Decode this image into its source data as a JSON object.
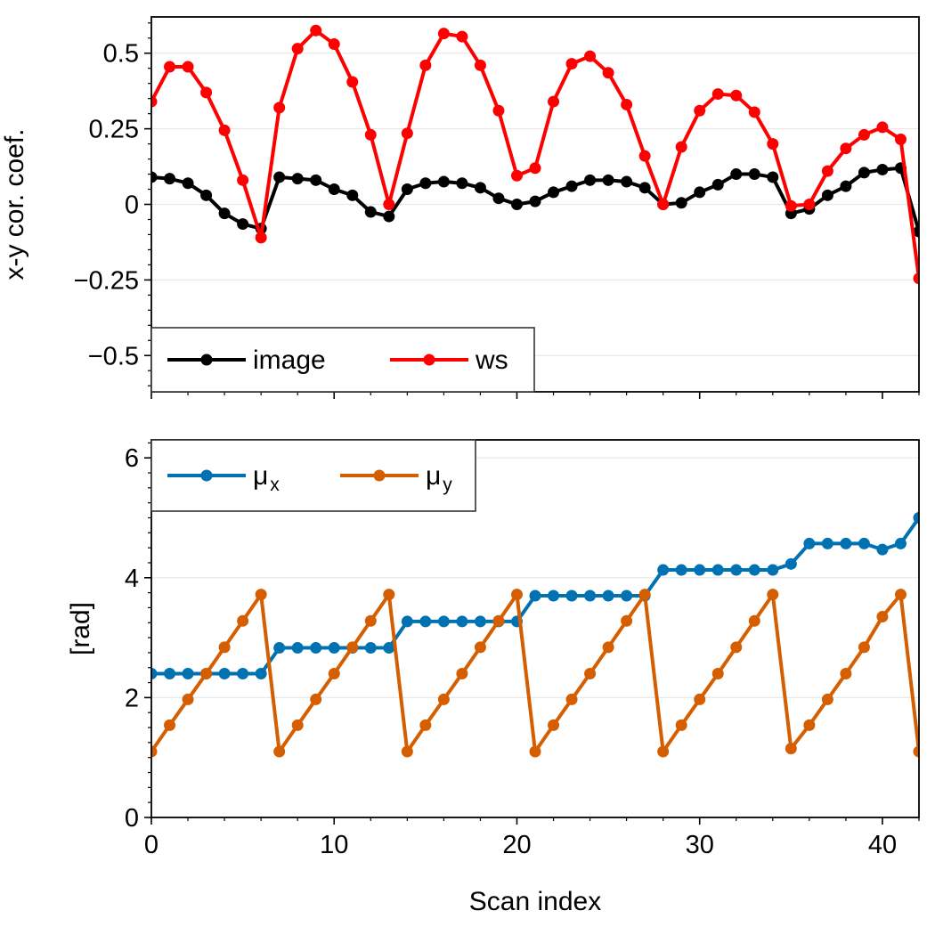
{
  "chart_data": [
    {
      "type": "line",
      "ylabel": "x-y cor. coef.",
      "xlabel": "",
      "xlim": [
        0,
        42
      ],
      "ylim": [
        -0.62,
        0.62
      ],
      "yticks": [
        0.5,
        0.25,
        0,
        -0.25,
        -0.5
      ],
      "ytick_labels": [
        "0.5",
        "0.25",
        "0",
        "−0.25",
        "−0.5"
      ],
      "grid": true,
      "legend": {
        "placement": "lower-left",
        "columns": 2
      },
      "x": [
        0,
        1,
        2,
        3,
        4,
        5,
        6,
        7,
        8,
        9,
        10,
        11,
        12,
        13,
        14,
        15,
        16,
        17,
        18,
        19,
        20,
        21,
        22,
        23,
        24,
        25,
        26,
        27,
        28,
        29,
        30,
        31,
        32,
        33,
        34,
        35,
        36,
        37,
        38,
        39,
        40,
        41,
        42
      ],
      "series": [
        {
          "name": "image",
          "color": "#000000",
          "values": [
            0.09,
            0.085,
            0.07,
            0.03,
            -0.03,
            -0.065,
            -0.08,
            0.09,
            0.085,
            0.08,
            0.05,
            0.03,
            -0.025,
            -0.04,
            0.05,
            0.07,
            0.075,
            0.07,
            0.055,
            0.02,
            0.0,
            0.01,
            0.04,
            0.06,
            0.08,
            0.08,
            0.075,
            0.055,
            0.0,
            0.005,
            0.04,
            0.065,
            0.1,
            0.1,
            0.09,
            -0.03,
            -0.015,
            0.03,
            0.06,
            0.105,
            0.115,
            0.12,
            -0.09
          ]
        },
        {
          "name": "ws",
          "color": "#ff0000",
          "values": [
            0.34,
            0.455,
            0.455,
            0.37,
            0.245,
            0.08,
            -0.11,
            0.32,
            0.515,
            0.575,
            0.53,
            0.405,
            0.23,
            0.0,
            0.235,
            0.46,
            0.565,
            0.555,
            0.46,
            0.31,
            0.095,
            0.12,
            0.34,
            0.465,
            0.49,
            0.435,
            0.33,
            0.16,
            0.0,
            0.19,
            0.31,
            0.365,
            0.36,
            0.305,
            0.2,
            -0.005,
            -0.0,
            0.11,
            0.185,
            0.23,
            0.255,
            0.215,
            -0.245
          ]
        }
      ]
    },
    {
      "type": "line",
      "ylabel": "[rad]",
      "xlabel": "Scan index",
      "xlim": [
        0,
        42
      ],
      "ylim": [
        0,
        6.3
      ],
      "xticks": [
        0,
        10,
        20,
        30,
        40
      ],
      "xtick_labels": [
        "0",
        "10",
        "20",
        "30",
        "40"
      ],
      "yticks": [
        0,
        2,
        4,
        6
      ],
      "ytick_labels": [
        "0",
        "2",
        "4",
        "6"
      ],
      "grid": true,
      "legend": {
        "placement": "upper-left",
        "columns": 2
      },
      "x": [
        0,
        1,
        2,
        3,
        4,
        5,
        6,
        7,
        8,
        9,
        10,
        11,
        12,
        13,
        14,
        15,
        16,
        17,
        18,
        19,
        20,
        21,
        22,
        23,
        24,
        25,
        26,
        27,
        28,
        29,
        30,
        31,
        32,
        33,
        34,
        35,
        36,
        37,
        38,
        39,
        40,
        41,
        42
      ],
      "series": [
        {
          "name": "μ",
          "subscript": "x",
          "color": "#0072b2",
          "values": [
            2.4,
            2.4,
            2.4,
            2.4,
            2.4,
            2.4,
            2.4,
            2.83,
            2.83,
            2.83,
            2.83,
            2.83,
            2.83,
            2.83,
            3.27,
            3.27,
            3.27,
            3.27,
            3.27,
            3.27,
            3.27,
            3.7,
            3.7,
            3.7,
            3.7,
            3.7,
            3.7,
            3.7,
            4.13,
            4.13,
            4.13,
            4.13,
            4.13,
            4.13,
            4.13,
            4.23,
            4.57,
            4.57,
            4.57,
            4.57,
            4.47,
            4.57,
            5.0
          ]
        },
        {
          "name": "μ",
          "subscript": "y",
          "color": "#d55e00",
          "values": [
            1.1,
            1.54,
            1.97,
            2.4,
            2.84,
            3.28,
            3.72,
            1.1,
            1.54,
            1.97,
            2.4,
            2.84,
            3.28,
            3.72,
            1.1,
            1.54,
            1.97,
            2.4,
            2.84,
            3.28,
            3.72,
            1.1,
            1.54,
            1.97,
            2.4,
            2.84,
            3.28,
            3.72,
            1.1,
            1.54,
            1.97,
            2.4,
            2.84,
            3.28,
            3.72,
            1.15,
            1.54,
            1.97,
            2.4,
            2.84,
            3.35,
            3.72,
            1.1
          ]
        }
      ]
    }
  ]
}
